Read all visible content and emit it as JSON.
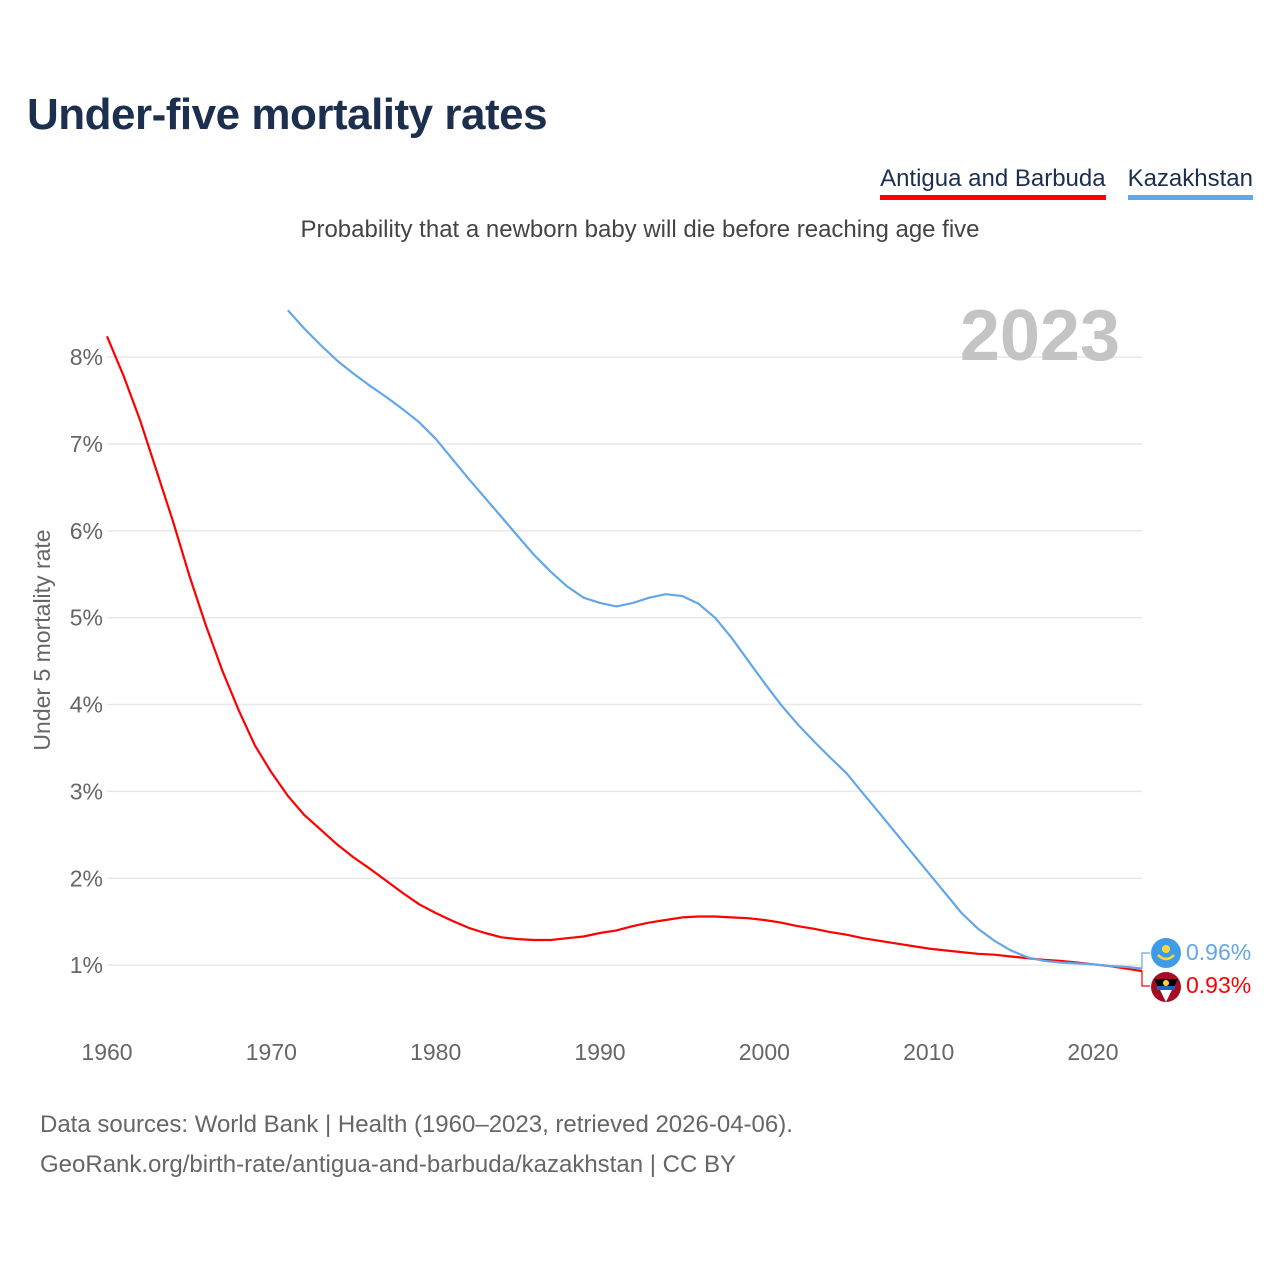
{
  "title": "Under-five mortality rates",
  "subtitle": "Probability that a newborn baby will die before reaching age five",
  "year_label": "2023",
  "footer": {
    "line1": "Data sources: World Bank | Health (1960–2023, retrieved 2026-04-06).",
    "line2": "GeoRank.org/birth-rate/antigua-and-barbuda/kazakhstan | CC BY"
  },
  "colors": {
    "antigua": "#ff0000",
    "kazakhstan": "#63a6e9",
    "title": "#1c2f4e"
  },
  "chart_data": {
    "type": "line",
    "title": "Under-five mortality rates",
    "subtitle": "Probability that a newborn baby will die before reaching age five",
    "xlabel": "",
    "ylabel": "Under 5 mortality rate",
    "xlim": [
      1960,
      2023
    ],
    "ylim": [
      0.4,
      8.6
    ],
    "x_ticks": [
      1960,
      1970,
      1980,
      1990,
      2000,
      2010,
      2020
    ],
    "x_tick_labels": [
      "1960",
      "1970",
      "1980",
      "1990",
      "2000",
      "2010",
      "2020"
    ],
    "y_ticks": [
      1,
      2,
      3,
      4,
      5,
      6,
      7,
      8
    ],
    "y_tick_labels": [
      "1%",
      "2%",
      "3%",
      "4%",
      "5%",
      "6%",
      "7%",
      "8%"
    ],
    "grid": true,
    "legend_position": "top-right",
    "series": [
      {
        "name": "Antigua and Barbuda",
        "color": "#ff0000",
        "start_year": 1960,
        "end_label": "0.93%",
        "values": [
          8.24,
          7.79,
          7.28,
          6.7,
          6.12,
          5.49,
          4.92,
          4.4,
          3.94,
          3.53,
          3.22,
          2.95,
          2.73,
          2.56,
          2.39,
          2.24,
          2.11,
          1.97,
          1.83,
          1.7,
          1.6,
          1.51,
          1.43,
          1.37,
          1.32,
          1.3,
          1.29,
          1.29,
          1.31,
          1.33,
          1.37,
          1.4,
          1.45,
          1.49,
          1.52,
          1.55,
          1.56,
          1.56,
          1.55,
          1.54,
          1.52,
          1.49,
          1.45,
          1.42,
          1.38,
          1.35,
          1.31,
          1.28,
          1.25,
          1.22,
          1.19,
          1.17,
          1.15,
          1.13,
          1.12,
          1.1,
          1.08,
          1.06,
          1.05,
          1.03,
          1.01,
          0.99,
          0.96,
          0.93
        ]
      },
      {
        "name": "Kazakhstan",
        "color": "#63a6e9",
        "start_year": 1971,
        "end_label": "0.96%",
        "values": [
          8.54,
          8.33,
          8.14,
          7.96,
          7.81,
          7.67,
          7.54,
          7.4,
          7.25,
          7.06,
          6.83,
          6.6,
          6.38,
          6.16,
          5.94,
          5.72,
          5.53,
          5.36,
          5.23,
          5.17,
          5.13,
          5.17,
          5.23,
          5.27,
          5.25,
          5.16,
          5.0,
          4.77,
          4.51,
          4.25,
          4.0,
          3.78,
          3.58,
          3.39,
          3.21,
          2.98,
          2.75,
          2.52,
          2.29,
          2.06,
          1.83,
          1.6,
          1.42,
          1.28,
          1.17,
          1.09,
          1.05,
          1.03,
          1.02,
          1.01,
          0.99,
          0.98,
          0.96
        ]
      }
    ]
  }
}
